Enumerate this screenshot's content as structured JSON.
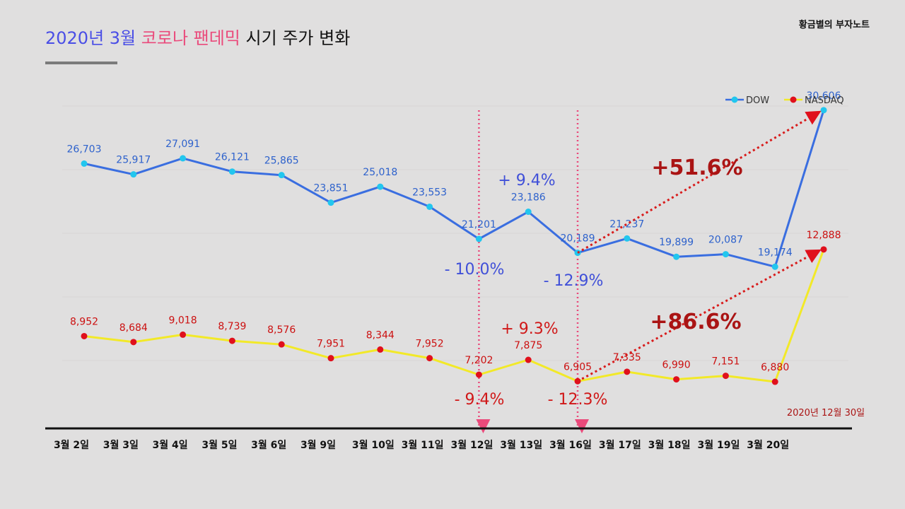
{
  "header": {
    "title_part1": "2020년 3월",
    "title_part2": "코로나 팬데믹",
    "title_part3": "시기 주가 변화",
    "brand": "황금별의 부자노트"
  },
  "colors": {
    "dow": "#3a6ee0",
    "dow_marker": "#22c6ee",
    "nasdaq": "#f2e928",
    "nasdaq_marker": "#e0101c",
    "dow_label": "#2e62cc",
    "nasdaq_label": "#cc1010",
    "arrow_dark": "#cc1616",
    "vline": "#ea4a7b"
  },
  "chart_data": {
    "type": "line",
    "title": "2020년 3월 코로나 팬데믹 시기 주가 변화",
    "categories": [
      "3월 2일",
      "3월 3일",
      "3월 4일",
      "3월 5일",
      "3월 6일",
      "3월 9일",
      "3월 10일",
      "3월 11일",
      "3월 12일",
      "3월 13일",
      "3월 16일",
      "3월 17일",
      "3월 18일",
      "3월 19일",
      "3월 20일",
      "2020년 12월 30일"
    ],
    "series": [
      {
        "name": "DOW",
        "values": [
          26703,
          25917,
          27091,
          26121,
          25865,
          23851,
          25018,
          23553,
          21201,
          23186,
          20189,
          21237,
          19899,
          20087,
          19174,
          30606
        ],
        "labels": [
          "26,703",
          "25,917",
          "27,091",
          "26,121",
          "25,865",
          "23,851",
          "25,018",
          "23,553",
          "21,201",
          "23,186",
          "20,189",
          "21,237",
          "19,899",
          "20,087",
          "19,174",
          "30,606"
        ]
      },
      {
        "name": "NASDAQ",
        "values": [
          8952,
          8684,
          9018,
          8739,
          8576,
          7951,
          8344,
          7952,
          7202,
          7875,
          6905,
          7335,
          6990,
          7151,
          6880,
          12888
        ],
        "labels": [
          "8,952",
          "8,684",
          "9,018",
          "8,739",
          "8,576",
          "7,951",
          "8,344",
          "7,952",
          "7,202",
          "7,875",
          "6,905",
          "7,335",
          "6,990",
          "7,151",
          "6,880",
          "12,888"
        ]
      }
    ],
    "legend": {
      "placement": "top-right",
      "entries": [
        "DOW",
        "NASDAQ"
      ]
    },
    "marker_lines": [
      "3월 12일",
      "3월 16일"
    ],
    "annotations": {
      "dow_drop1": "- 10.0%",
      "dow_rise": "+ 9.4%",
      "dow_drop2": "- 12.9%",
      "dow_total": "+51.6%",
      "nasdaq_drop1": "- 9.4%",
      "nasdaq_rise": "+ 9.3%",
      "nasdaq_drop2": "- 12.3%",
      "nasdaq_total": "+86.6%",
      "last_date_label": "2020년 12월 30일"
    }
  }
}
